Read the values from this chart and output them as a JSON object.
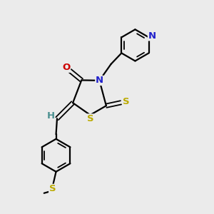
{
  "bg_color": "#ebebeb",
  "atom_colors": {
    "C": "#000000",
    "N": "#2222cc",
    "O": "#cc0000",
    "S": "#bbaa00",
    "H": "#4a9090"
  },
  "bond_color": "#000000",
  "figsize": [
    3.0,
    3.0
  ],
  "dpi": 100
}
